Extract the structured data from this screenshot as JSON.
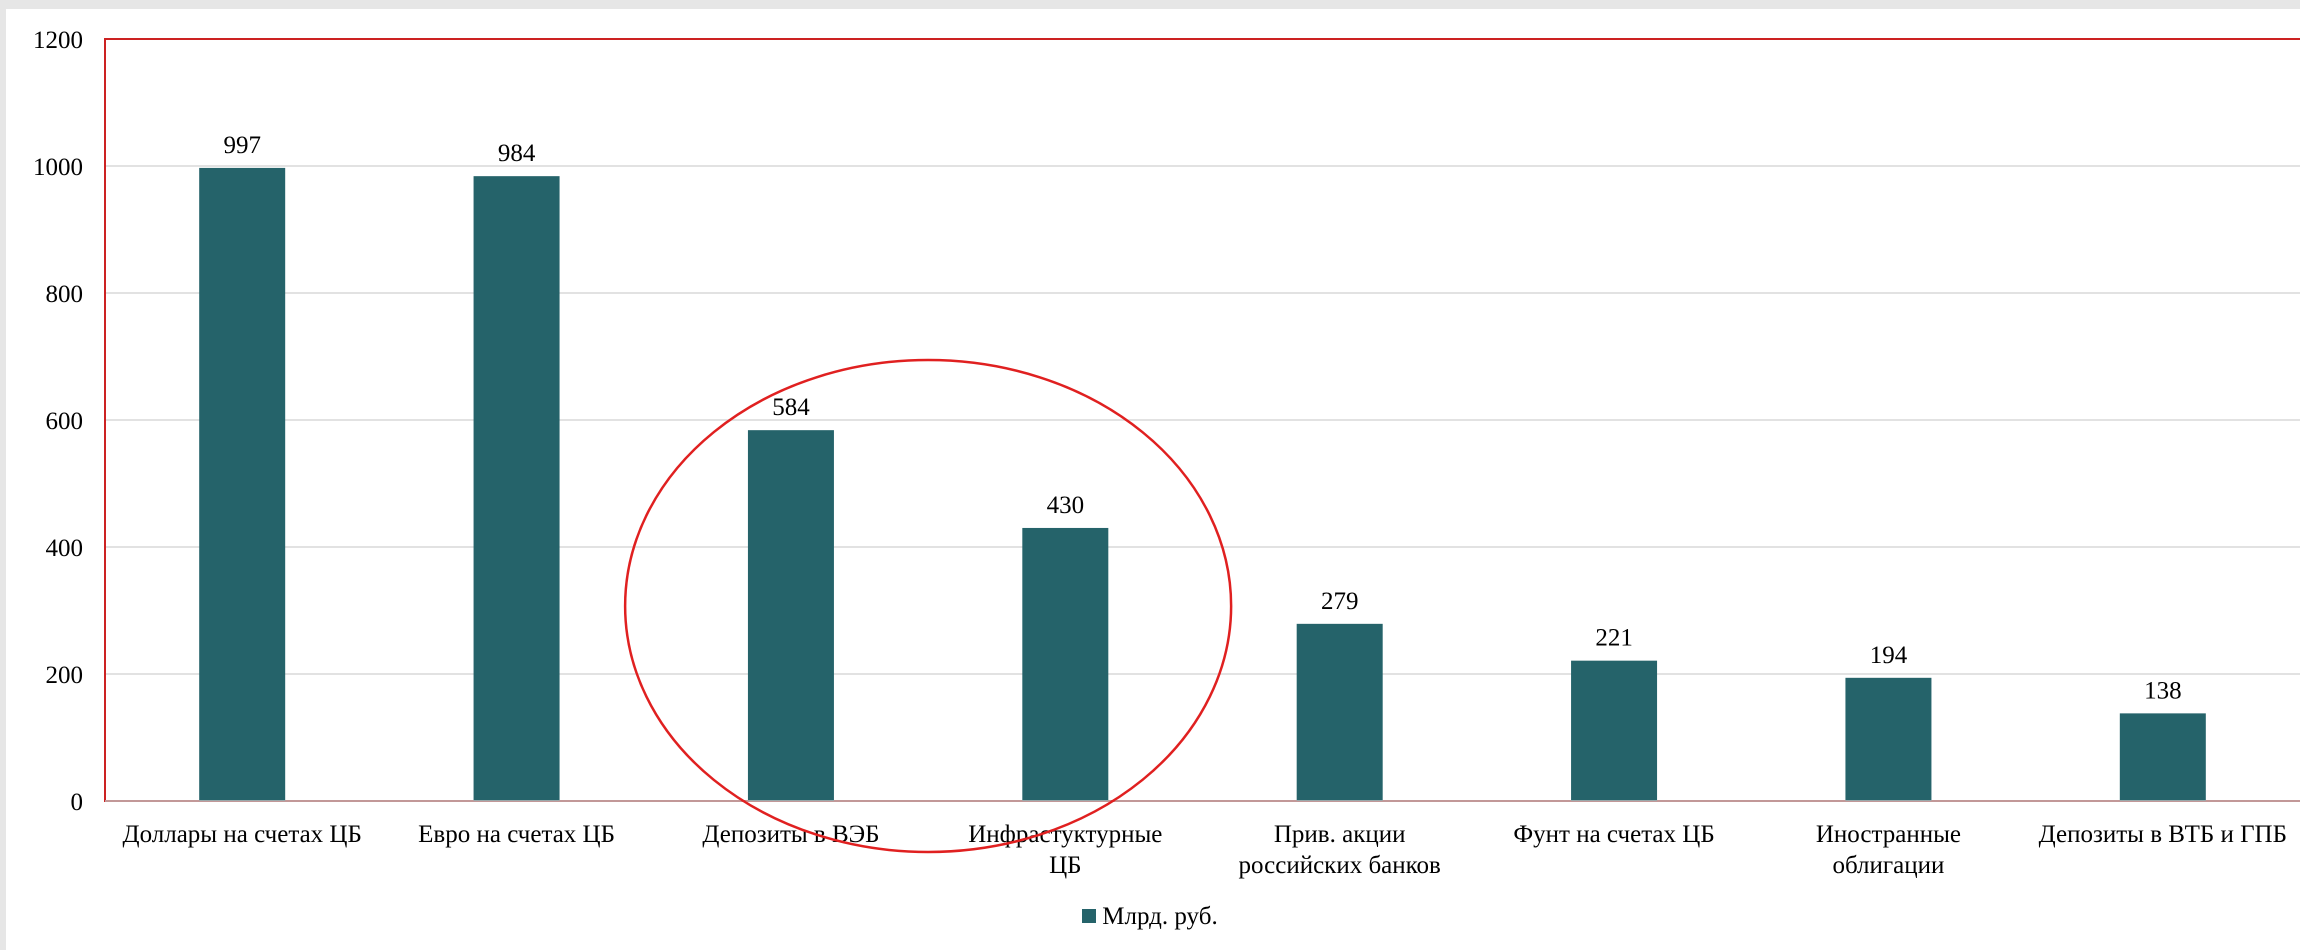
{
  "chart_data": {
    "type": "bar",
    "categories": [
      [
        "Доллары на счетах ЦБ"
      ],
      [
        "Евро на счетах ЦБ"
      ],
      [
        "Депозиты в ВЭБ"
      ],
      [
        "Инфрастуктурные",
        "ЦБ"
      ],
      [
        "Прив. акции",
        "российских банков"
      ],
      [
        "Фунт на счетах ЦБ"
      ],
      [
        "Иностранные",
        "облигации"
      ],
      [
        "Депозиты в ВТБ и ГПБ"
      ]
    ],
    "series": [
      {
        "name": "Млрд. руб.",
        "values": [
          997,
          984,
          584,
          430,
          279,
          221,
          194,
          138
        ]
      }
    ],
    "data_labels": [
      "997",
      "984",
      "584",
      "430",
      "279",
      "221",
      "194",
      "138"
    ],
    "y_ticks": [
      "0",
      "200",
      "400",
      "600",
      "800",
      "1000",
      "1200"
    ],
    "ylim": [
      0,
      1200
    ],
    "grid": true,
    "legend_position": "bottom-center",
    "highlight": {
      "shape": "ellipse",
      "categories_index": [
        2,
        3
      ],
      "color": "#e02020"
    },
    "colors": {
      "bar": "#25636a",
      "grid": "#d9d9d9",
      "border": "#cc2222",
      "highlight": "#e02020"
    }
  }
}
